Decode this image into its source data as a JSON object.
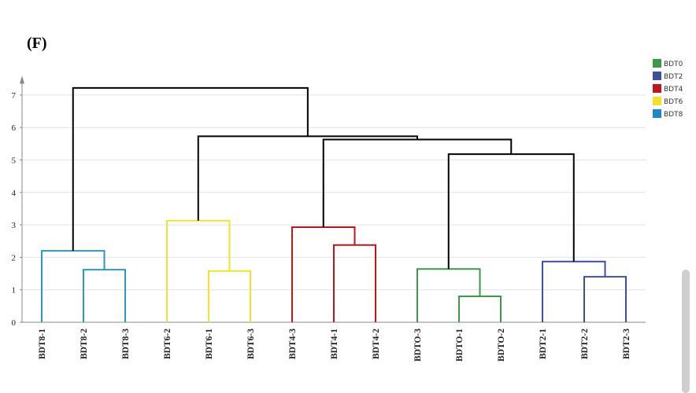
{
  "panel_label": "(F)",
  "chart_data": {
    "type": "dendrogram",
    "y_ticks": [
      0,
      1,
      2,
      3,
      4,
      5,
      6,
      7
    ],
    "ylim": [
      0,
      7.4
    ],
    "grid": true,
    "legend_position": "top-right",
    "legend": [
      {
        "label": "BDT0",
        "color": "#3a9a45"
      },
      {
        "label": "BDT2",
        "color": "#3f4ea0"
      },
      {
        "label": "BDT4",
        "color": "#c0161b"
      },
      {
        "label": "BDT6",
        "color": "#f2e32a"
      },
      {
        "label": "BDT8",
        "color": "#1f86c8"
      }
    ],
    "leaves": [
      "BDT8-1",
      "BDT8-2",
      "BDT8-3",
      "BDT6-2",
      "BDT6-1",
      "BDT6-3",
      "BDT4-3",
      "BDT4-1",
      "BDT4-2",
      "BDTO-3",
      "BDTO-1",
      "BDTO-2",
      "BDT2-1",
      "BDT2-2",
      "BDT2-3"
    ],
    "merges": [
      {
        "a": 1,
        "b": 2,
        "height": 1.62,
        "color": "#2a9ab9"
      },
      {
        "a": 0,
        "b": 15,
        "height": 2.2,
        "color": "#2a9ab9"
      },
      {
        "a": 4,
        "b": 5,
        "height": 1.58,
        "color": "#f2e32a"
      },
      {
        "a": 3,
        "b": 17,
        "height": 3.13,
        "color": "#f2e32a"
      },
      {
        "a": 7,
        "b": 8,
        "height": 2.38,
        "color": "#c0161b"
      },
      {
        "a": 6,
        "b": 19,
        "height": 2.93,
        "color": "#c0161b"
      },
      {
        "a": 10,
        "b": 11,
        "height": 0.8,
        "color": "#3a9a45"
      },
      {
        "a": 9,
        "b": 21,
        "height": 1.64,
        "color": "#3a9a45"
      },
      {
        "a": 13,
        "b": 14,
        "height": 1.4,
        "color": "#3f4ea0"
      },
      {
        "a": 12,
        "b": 23,
        "height": 1.87,
        "color": "#3f4ea0"
      },
      {
        "a": 22,
        "b": 24,
        "height": 5.18,
        "color": "#000000"
      },
      {
        "a": 20,
        "b": 25,
        "height": 5.63,
        "color": "#000000"
      },
      {
        "a": 18,
        "b": 26,
        "height": 5.73,
        "color": "#000000"
      },
      {
        "a": 16,
        "b": 27,
        "height": 7.22,
        "color": "#000000"
      }
    ]
  }
}
